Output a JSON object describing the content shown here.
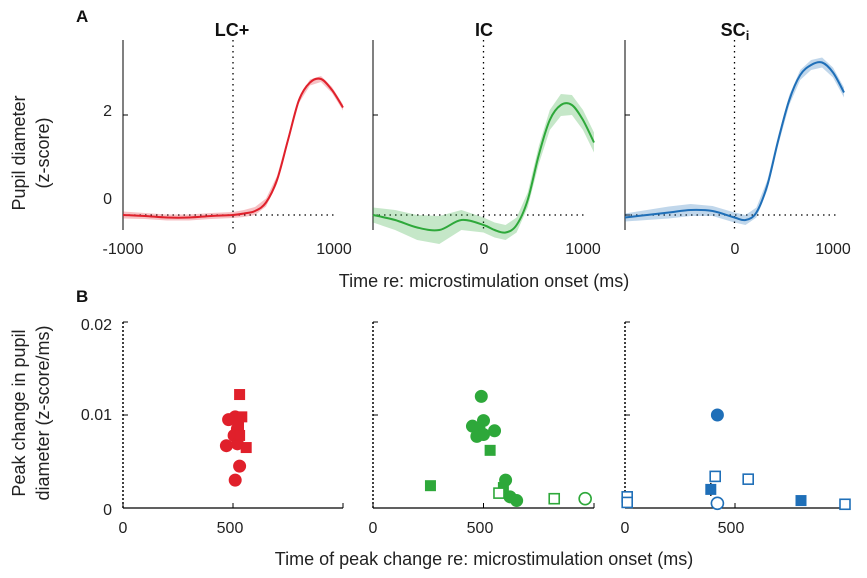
{
  "colors": {
    "lc": "#e0202b",
    "ic": "#2ea83a",
    "sc": "#1f6fb8",
    "axis": "#000000"
  },
  "panel_letters": {
    "a": "A",
    "b": "B"
  },
  "row_a_axis": {
    "ylabel_line1": "Pupil diameter",
    "ylabel_line2": "(z-score)",
    "xlabel": "Time re: microstimulation onset (ms)",
    "x_tick_labels": [
      "-1000",
      "0",
      "1000"
    ],
    "y_tick_labels": [
      "0",
      "2"
    ]
  },
  "row_b_axis": {
    "ylabel_line1": "Peak change in pupil",
    "ylabel_line2": "diameter (z-score/ms)",
    "xlabel": "Time of peak change re: microstimulation onset (ms)",
    "x_tick_labels": [
      "0",
      "500"
    ],
    "y_tick_labels": [
      "0",
      "0.01",
      "0.02"
    ]
  },
  "chart_data": [
    {
      "type": "line",
      "title": "LC+",
      "xlim": [
        -1000,
        1000
      ],
      "ylim": [
        -0.3,
        3.5
      ],
      "x": [
        -1000,
        -800,
        -600,
        -400,
        -200,
        0,
        100,
        200,
        300,
        400,
        500,
        600,
        700,
        800,
        900,
        1000
      ],
      "y": [
        0.0,
        -0.02,
        -0.05,
        -0.05,
        -0.02,
        0.0,
        0.03,
        0.08,
        0.25,
        0.7,
        1.5,
        2.3,
        2.65,
        2.72,
        2.5,
        2.15
      ],
      "ci": [
        0.07,
        0.06,
        0.06,
        0.06,
        0.06,
        0.06,
        0.07,
        0.08,
        0.08,
        0.08,
        0.07,
        0.06,
        0.06,
        0.06,
        0.06,
        0.06
      ]
    },
    {
      "type": "line",
      "title": "IC",
      "xlim": [
        -1000,
        1000
      ],
      "ylim": [
        -0.3,
        3.5
      ],
      "x": [
        -1000,
        -800,
        -600,
        -400,
        -200,
        0,
        100,
        200,
        300,
        400,
        500,
        600,
        700,
        800,
        900,
        1000
      ],
      "y": [
        0.0,
        -0.1,
        -0.25,
        -0.3,
        -0.1,
        -0.2,
        -0.3,
        -0.35,
        -0.2,
        0.3,
        1.2,
        1.9,
        2.2,
        2.2,
        1.9,
        1.45
      ],
      "ci": [
        0.15,
        0.2,
        0.25,
        0.28,
        0.2,
        0.15,
        0.15,
        0.15,
        0.15,
        0.15,
        0.18,
        0.2,
        0.22,
        0.2,
        0.2,
        0.2
      ]
    },
    {
      "type": "line",
      "title": "SCi",
      "xlim": [
        -1000,
        1000
      ],
      "ylim": [
        -0.3,
        3.5
      ],
      "x": [
        -1000,
        -800,
        -600,
        -400,
        -200,
        0,
        100,
        200,
        300,
        400,
        500,
        600,
        700,
        800,
        900,
        1000
      ],
      "y": [
        -0.05,
        0.0,
        0.05,
        0.1,
        0.08,
        -0.05,
        -0.1,
        0.05,
        0.6,
        1.5,
        2.3,
        2.8,
        3.0,
        3.05,
        2.85,
        2.45
      ],
      "ci": [
        0.08,
        0.1,
        0.12,
        0.12,
        0.1,
        0.1,
        0.1,
        0.1,
        0.1,
        0.1,
        0.1,
        0.1,
        0.1,
        0.1,
        0.1,
        0.1
      ]
    },
    {
      "type": "scatter",
      "title": "",
      "xlim": [
        0,
        1000
      ],
      "ylim": [
        0,
        0.02
      ],
      "points": [
        {
          "x": 510,
          "y": 0.0098,
          "err": 0.0003,
          "marker": "circle",
          "filled": true
        },
        {
          "x": 480,
          "y": 0.0095,
          "err": 0.0003,
          "marker": "circle",
          "filled": true
        },
        {
          "x": 520,
          "y": 0.0085,
          "err": 0.0004,
          "marker": "circle",
          "filled": true
        },
        {
          "x": 505,
          "y": 0.0078,
          "err": 0.0004,
          "marker": "circle",
          "filled": true
        },
        {
          "x": 470,
          "y": 0.0067,
          "err": 0.0003,
          "marker": "circle",
          "filled": true
        },
        {
          "x": 520,
          "y": 0.0069,
          "err": 0.0003,
          "marker": "circle",
          "filled": true
        },
        {
          "x": 530,
          "y": 0.0045,
          "err": 0.0003,
          "marker": "circle",
          "filled": true
        },
        {
          "x": 510,
          "y": 0.003,
          "err": 0.0003,
          "marker": "circle",
          "filled": true
        },
        {
          "x": 530,
          "y": 0.0122,
          "err": 0.0004,
          "marker": "square",
          "filled": true
        },
        {
          "x": 540,
          "y": 0.0098,
          "err": 0.0003,
          "marker": "square",
          "filled": true
        },
        {
          "x": 525,
          "y": 0.0088,
          "err": 0.0003,
          "marker": "square",
          "filled": true
        },
        {
          "x": 530,
          "y": 0.0078,
          "err": 0.0004,
          "marker": "square",
          "filled": true
        },
        {
          "x": 560,
          "y": 0.0065,
          "err": 0.0003,
          "marker": "square",
          "filled": true
        }
      ]
    },
    {
      "type": "scatter",
      "title": "",
      "xlim": [
        0,
        1000
      ],
      "ylim": [
        0,
        0.02
      ],
      "points": [
        {
          "x": 490,
          "y": 0.012,
          "err": 0.0003,
          "marker": "circle",
          "filled": true
        },
        {
          "x": 500,
          "y": 0.0094,
          "err": 0.0003,
          "marker": "circle",
          "filled": true
        },
        {
          "x": 450,
          "y": 0.0088,
          "err": 0.0003,
          "marker": "circle",
          "filled": true
        },
        {
          "x": 480,
          "y": 0.0085,
          "err": 0.0003,
          "marker": "circle",
          "filled": true
        },
        {
          "x": 550,
          "y": 0.0083,
          "err": 0.0003,
          "marker": "circle",
          "filled": true
        },
        {
          "x": 470,
          "y": 0.0077,
          "err": 0.0003,
          "marker": "circle",
          "filled": true
        },
        {
          "x": 500,
          "y": 0.0079,
          "err": 0.0003,
          "marker": "circle",
          "filled": true
        },
        {
          "x": 600,
          "y": 0.003,
          "err": 0.0003,
          "marker": "circle",
          "filled": true
        },
        {
          "x": 620,
          "y": 0.0012,
          "err": 0.0002,
          "marker": "circle",
          "filled": true
        },
        {
          "x": 650,
          "y": 0.0008,
          "err": 0.0002,
          "marker": "circle",
          "filled": true
        },
        {
          "x": 960,
          "y": 0.001,
          "err": 0.0002,
          "marker": "circle",
          "filled": false
        },
        {
          "x": 530,
          "y": 0.0062,
          "err": 0.0004,
          "marker": "square",
          "filled": true
        },
        {
          "x": 260,
          "y": 0.0024,
          "err": 0.0003,
          "marker": "square",
          "filled": true
        },
        {
          "x": 590,
          "y": 0.0022,
          "err": 0.0003,
          "marker": "square",
          "filled": true
        },
        {
          "x": 570,
          "y": 0.0016,
          "err": 0.0003,
          "marker": "square",
          "filled": false
        },
        {
          "x": 820,
          "y": 0.001,
          "err": 0.0002,
          "marker": "square",
          "filled": false
        }
      ]
    },
    {
      "type": "scatter",
      "title": "",
      "xlim": [
        0,
        1000
      ],
      "ylim": [
        0,
        0.02
      ],
      "points": [
        {
          "x": 420,
          "y": 0.01,
          "err": 0.0002,
          "marker": "circle",
          "filled": true
        },
        {
          "x": 420,
          "y": 0.0005,
          "err": 0.0002,
          "marker": "circle",
          "filled": false
        },
        {
          "x": 390,
          "y": 0.002,
          "err": 0.0007,
          "marker": "square",
          "filled": true
        },
        {
          "x": 800,
          "y": 0.0008,
          "err": 0.0001,
          "marker": "square",
          "filled": true
        },
        {
          "x": 410,
          "y": 0.0034,
          "err": 0.0004,
          "marker": "square",
          "filled": false
        },
        {
          "x": 560,
          "y": 0.0031,
          "err": 0.0004,
          "marker": "square",
          "filled": false
        },
        {
          "x": 10,
          "y": 0.0012,
          "err": 0.0003,
          "marker": "square",
          "filled": false
        },
        {
          "x": 10,
          "y": 0.0006,
          "err": 0.0002,
          "marker": "square",
          "filled": false
        },
        {
          "x": 1000,
          "y": 0.0004,
          "err": 0.0003,
          "marker": "square",
          "filled": false
        }
      ]
    }
  ]
}
